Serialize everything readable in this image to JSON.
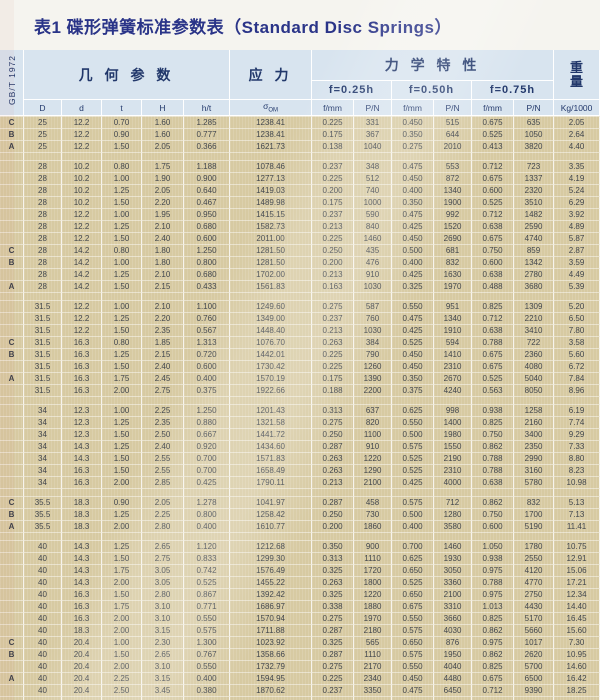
{
  "title": "表1 碟形弹簧标准参数表（Standard Disc Springs）",
  "standard_code": "GB/T 1972",
  "header": {
    "geometry_label": "几 何 参 数",
    "stress_label": "应 力",
    "mechanical_label": "力 学 特 性",
    "weight_label_line1": "重",
    "weight_label_line2": "量",
    "deflection_levels": [
      "f=0.25h",
      "f=0.50h",
      "f=0.75h"
    ],
    "stress_symbol": "σ",
    "stress_subscript": "OM",
    "columns": {
      "D": "D",
      "d": "d",
      "t": "t",
      "H": "H",
      "ht": "h/t",
      "f": "f/mm",
      "p": "P/N",
      "weight": "Kg/1000"
    }
  },
  "colors": {
    "title": "#2a3488",
    "header_bg": "#d8e4ef",
    "header_text": "#22386b",
    "row_bg": "#d7caa2",
    "text": "#41464d"
  },
  "groups": [
    {
      "rows": [
        {
          "s": "C",
          "c": [
            "25",
            "12.2",
            "0.70",
            "1.60",
            "1.285",
            "1238.41",
            "0.225",
            "331",
            "0.450",
            "515",
            "0.675",
            "635",
            "2.05"
          ]
        },
        {
          "s": "B",
          "c": [
            "25",
            "12.2",
            "0.90",
            "1.60",
            "0.777",
            "1238.41",
            "0.175",
            "367",
            "0.350",
            "644",
            "0.525",
            "1050",
            "2.64"
          ]
        },
        {
          "s": "A",
          "c": [
            "25",
            "12.2",
            "1.50",
            "2.05",
            "0.366",
            "1621.73",
            "0.138",
            "1040",
            "0.275",
            "2010",
            "0.413",
            "3820",
            "4.40"
          ]
        }
      ]
    },
    {
      "rows": [
        {
          "s": "",
          "c": [
            "28",
            "10.2",
            "0.80",
            "1.75",
            "1.188",
            "1078.46",
            "0.237",
            "348",
            "0.475",
            "553",
            "0.712",
            "723",
            "3.35"
          ]
        },
        {
          "s": "",
          "c": [
            "28",
            "10.2",
            "1.00",
            "1.90",
            "0.900",
            "1277.13",
            "0.225",
            "512",
            "0.450",
            "872",
            "0.675",
            "1337",
            "4.19"
          ]
        },
        {
          "s": "",
          "c": [
            "28",
            "10.2",
            "1.25",
            "2.05",
            "0.640",
            "1419.03",
            "0.200",
            "740",
            "0.400",
            "1340",
            "0.600",
            "2320",
            "5.24"
          ]
        },
        {
          "s": "",
          "c": [
            "28",
            "10.2",
            "1.50",
            "2.20",
            "0.467",
            "1489.98",
            "0.175",
            "1000",
            "0.350",
            "1900",
            "0.525",
            "3510",
            "6.29"
          ]
        },
        {
          "s": "",
          "c": [
            "28",
            "12.2",
            "1.00",
            "1.95",
            "0.950",
            "1415.15",
            "0.237",
            "590",
            "0.475",
            "992",
            "0.712",
            "1482",
            "3.92"
          ]
        },
        {
          "s": "",
          "c": [
            "28",
            "12.2",
            "1.25",
            "2.10",
            "0.680",
            "1582.73",
            "0.213",
            "840",
            "0.425",
            "1520",
            "0.638",
            "2590",
            "4.89"
          ]
        },
        {
          "s": "",
          "c": [
            "28",
            "12.2",
            "1.50",
            "2.40",
            "0.600",
            "2011.00",
            "0.225",
            "1460",
            "0.450",
            "2690",
            "0.675",
            "4740",
            "5.87"
          ]
        },
        {
          "s": "C",
          "c": [
            "28",
            "14.2",
            "0.80",
            "1.80",
            "1.250",
            "1281.50",
            "0.250",
            "435",
            "0.500",
            "681",
            "0.750",
            "859",
            "2.87"
          ]
        },
        {
          "s": "B",
          "c": [
            "28",
            "14.2",
            "1.00",
            "1.80",
            "0.800",
            "1281.50",
            "0.200",
            "476",
            "0.400",
            "832",
            "0.600",
            "1342",
            "3.59"
          ]
        },
        {
          "s": "",
          "c": [
            "28",
            "14.2",
            "1.25",
            "2.10",
            "0.680",
            "1702.00",
            "0.213",
            "910",
            "0.425",
            "1630",
            "0.638",
            "2780",
            "4.49"
          ]
        },
        {
          "s": "A",
          "c": [
            "28",
            "14.2",
            "1.50",
            "2.15",
            "0.433",
            "1561.83",
            "0.163",
            "1030",
            "0.325",
            "1970",
            "0.488",
            "3680",
            "5.39"
          ]
        }
      ]
    },
    {
      "rows": [
        {
          "s": "",
          "c": [
            "31.5",
            "12.2",
            "1.00",
            "2.10",
            "1.100",
            "1249.60",
            "0.275",
            "587",
            "0.550",
            "951",
            "0.825",
            "1309",
            "5.20"
          ]
        },
        {
          "s": "",
          "c": [
            "31.5",
            "12.2",
            "1.25",
            "2.20",
            "0.760",
            "1349.00",
            "0.237",
            "760",
            "0.475",
            "1340",
            "0.712",
            "2210",
            "6.50"
          ]
        },
        {
          "s": "",
          "c": [
            "31.5",
            "12.2",
            "1.50",
            "2.35",
            "0.567",
            "1448.40",
            "0.213",
            "1030",
            "0.425",
            "1910",
            "0.638",
            "3410",
            "7.80"
          ]
        },
        {
          "s": "C",
          "c": [
            "31.5",
            "16.3",
            "0.80",
            "1.85",
            "1.313",
            "1076.70",
            "0.263",
            "384",
            "0.525",
            "594",
            "0.788",
            "722",
            "3.58"
          ]
        },
        {
          "s": "B",
          "c": [
            "31.5",
            "16.3",
            "1.25",
            "2.15",
            "0.720",
            "1442.01",
            "0.225",
            "790",
            "0.450",
            "1410",
            "0.675",
            "2360",
            "5.60"
          ]
        },
        {
          "s": "",
          "c": [
            "31.5",
            "16.3",
            "1.50",
            "2.40",
            "0.600",
            "1730.42",
            "0.225",
            "1260",
            "0.450",
            "2310",
            "0.675",
            "4080",
            "6.72"
          ]
        },
        {
          "s": "A",
          "c": [
            "31.5",
            "16.3",
            "1.75",
            "2.45",
            "0.400",
            "1570.19",
            "0.175",
            "1390",
            "0.350",
            "2670",
            "0.525",
            "5040",
            "7.84"
          ]
        },
        {
          "s": "",
          "c": [
            "31.5",
            "16.3",
            "2.00",
            "2.75",
            "0.375",
            "1922.66",
            "0.188",
            "2200",
            "0.375",
            "4240",
            "0.563",
            "8050",
            "8.96"
          ]
        }
      ]
    },
    {
      "rows": [
        {
          "s": "",
          "c": [
            "34",
            "12.3",
            "1.00",
            "2.25",
            "1.250",
            "1201.43",
            "0.313",
            "637",
            "0.625",
            "998",
            "0.938",
            "1258",
            "6.19"
          ]
        },
        {
          "s": "",
          "c": [
            "34",
            "12.3",
            "1.25",
            "2.35",
            "0.880",
            "1321.58",
            "0.275",
            "820",
            "0.550",
            "1400",
            "0.825",
            "2160",
            "7.74"
          ]
        },
        {
          "s": "",
          "c": [
            "34",
            "12.3",
            "1.50",
            "2.50",
            "0.667",
            "1441.72",
            "0.250",
            "1100",
            "0.500",
            "1980",
            "0.750",
            "3400",
            "9.29"
          ]
        },
        {
          "s": "",
          "c": [
            "34",
            "14.3",
            "1.25",
            "2.40",
            "0.920",
            "1434.60",
            "0.287",
            "910",
            "0.575",
            "1550",
            "0.862",
            "2350",
            "7.33"
          ]
        },
        {
          "s": "",
          "c": [
            "34",
            "14.3",
            "1.50",
            "2.55",
            "0.700",
            "1571.83",
            "0.263",
            "1220",
            "0.525",
            "2190",
            "0.788",
            "2990",
            "8.80"
          ]
        },
        {
          "s": "",
          "c": [
            "34",
            "16.3",
            "1.50",
            "2.55",
            "0.700",
            "1658.49",
            "0.263",
            "1290",
            "0.525",
            "2310",
            "0.788",
            "3160",
            "8.23"
          ]
        },
        {
          "s": "",
          "c": [
            "34",
            "16.3",
            "2.00",
            "2.85",
            "0.425",
            "1790.11",
            "0.213",
            "2100",
            "0.425",
            "4000",
            "0.638",
            "5780",
            "10.98"
          ]
        }
      ]
    },
    {
      "rows": [
        {
          "s": "C",
          "c": [
            "35.5",
            "18.3",
            "0.90",
            "2.05",
            "1.278",
            "1041.97",
            "0.287",
            "458",
            "0.575",
            "712",
            "0.862",
            "832",
            "5.13"
          ]
        },
        {
          "s": "B",
          "c": [
            "35.5",
            "18.3",
            "1.25",
            "2.25",
            "0.800",
            "1258.42",
            "0.250",
            "730",
            "0.500",
            "1280",
            "0.750",
            "1700",
            "7.13"
          ]
        },
        {
          "s": "A",
          "c": [
            "35.5",
            "18.3",
            "2.00",
            "2.80",
            "0.400",
            "1610.77",
            "0.200",
            "1860",
            "0.400",
            "3580",
            "0.600",
            "5190",
            "11.41"
          ]
        }
      ]
    },
    {
      "rows": [
        {
          "s": "",
          "c": [
            "40",
            "14.3",
            "1.25",
            "2.65",
            "1.120",
            "1212.68",
            "0.350",
            "900",
            "0.700",
            "1460",
            "1.050",
            "1780",
            "10.75"
          ]
        },
        {
          "s": "",
          "c": [
            "40",
            "14.3",
            "1.50",
            "2.75",
            "0.833",
            "1299.30",
            "0.313",
            "1110",
            "0.625",
            "1930",
            "0.938",
            "2550",
            "12.91"
          ]
        },
        {
          "s": "",
          "c": [
            "40",
            "14.3",
            "1.75",
            "3.05",
            "0.742",
            "1576.49",
            "0.325",
            "1720",
            "0.650",
            "3050",
            "0.975",
            "4120",
            "15.06"
          ]
        },
        {
          "s": "",
          "c": [
            "40",
            "14.3",
            "2.00",
            "3.05",
            "0.525",
            "1455.22",
            "0.263",
            "1800",
            "0.525",
            "3360",
            "0.788",
            "4770",
            "17.21"
          ]
        },
        {
          "s": "",
          "c": [
            "40",
            "16.3",
            "1.50",
            "2.80",
            "0.867",
            "1392.42",
            "0.325",
            "1220",
            "0.650",
            "2100",
            "0.975",
            "2750",
            "12.34"
          ]
        },
        {
          "s": "",
          "c": [
            "40",
            "16.3",
            "1.75",
            "3.10",
            "0.771",
            "1686.97",
            "0.338",
            "1880",
            "0.675",
            "3310",
            "1.013",
            "4430",
            "14.40"
          ]
        },
        {
          "s": "",
          "c": [
            "40",
            "16.3",
            "2.00",
            "3.10",
            "0.550",
            "1570.94",
            "0.275",
            "1970",
            "0.550",
            "3660",
            "0.825",
            "5170",
            "16.45"
          ]
        },
        {
          "s": "",
          "c": [
            "40",
            "18.3",
            "2.00",
            "3.15",
            "0.575",
            "1711.88",
            "0.287",
            "2180",
            "0.575",
            "4030",
            "0.862",
            "5660",
            "15.60"
          ]
        },
        {
          "s": "C",
          "c": [
            "40",
            "20.4",
            "1.00",
            "2.30",
            "1.300",
            "1023.92",
            "0.325",
            "565",
            "0.650",
            "876",
            "0.975",
            "1017",
            "7.30"
          ]
        },
        {
          "s": "B",
          "c": [
            "40",
            "20.4",
            "1.50",
            "2.65",
            "0.767",
            "1358.66",
            "0.287",
            "1110",
            "0.575",
            "1950",
            "0.862",
            "2620",
            "10.95"
          ]
        },
        {
          "s": "",
          "c": [
            "40",
            "20.4",
            "2.00",
            "3.10",
            "0.550",
            "1732.79",
            "0.275",
            "2170",
            "0.550",
            "4040",
            "0.825",
            "5700",
            "14.60"
          ]
        },
        {
          "s": "A",
          "c": [
            "40",
            "20.4",
            "2.25",
            "3.15",
            "0.400",
            "1594.95",
            "0.225",
            "2340",
            "0.450",
            "4480",
            "0.675",
            "6500",
            "16.42"
          ]
        },
        {
          "s": "",
          "c": [
            "40",
            "20.4",
            "2.50",
            "3.45",
            "0.380",
            "1870.62",
            "0.237",
            "3350",
            "0.475",
            "6450",
            "0.712",
            "9390",
            "18.25"
          ]
        }
      ]
    }
  ]
}
